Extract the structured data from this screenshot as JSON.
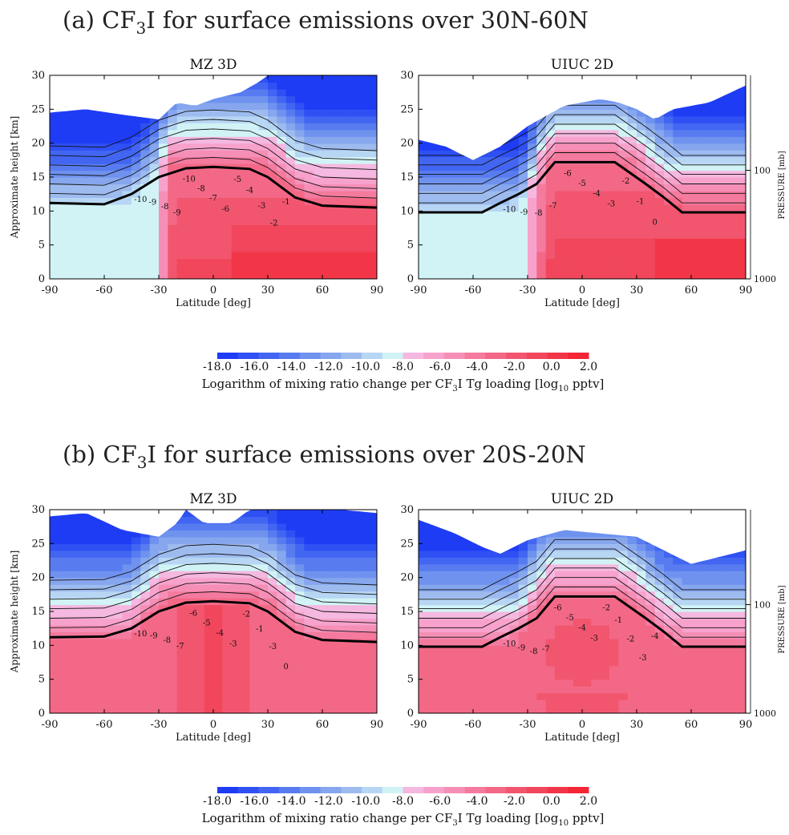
{
  "sections": [
    {
      "title": "(a) CF3I for surface emissions over 30N-60N",
      "title_main": "(a) CF",
      "title_sub": "3",
      "title_rest": "I for surface emissions over 30N-60N"
    },
    {
      "title": "(b) CF3I for surface emissions over 20S-20N",
      "title_main": "(b) CF",
      "title_sub": "3",
      "title_rest": "I for surface emissions over 20S-20N"
    }
  ],
  "colorbar": {
    "ticks": [
      "-18.0",
      "-16.0",
      "-14.0",
      "-12.0",
      "-10.0",
      "-8.0",
      "-6.0",
      "-4.0",
      "-2.0",
      "0.0",
      "2.0"
    ],
    "label_pre": "Logarithm of mixing ratio change per CF",
    "label_sub1": "3",
    "label_mid": "I Tg loading [log",
    "label_sub2": "10",
    "label_post": " pptv]",
    "colors": [
      "#1f3cf5",
      "#2f50f3",
      "#4266f2",
      "#587cf0",
      "#6f92ef",
      "#86a6ee",
      "#9dbbef",
      "#b7d6f4",
      "#d1f3f5",
      "#f5b8e0",
      "#f7a2cc",
      "#f58fb6",
      "#f47a9e",
      "#f36886",
      "#f2566f",
      "#f1465b",
      "#f23648",
      "#f42636"
    ]
  },
  "chart_data": [
    {
      "type": "heatmap",
      "panel": "a-left",
      "title": "MZ 3D",
      "xlabel": "Latitude [deg]",
      "ylabel": "Approximate height [km]",
      "xlim": [
        -90,
        90
      ],
      "ylim": [
        0,
        30
      ],
      "xticks": [
        "-90",
        "-60",
        "-30",
        "0",
        "30",
        "60",
        "90"
      ],
      "yticks": [
        "0",
        "5",
        "10",
        "15",
        "20",
        "25",
        "30"
      ],
      "contour_labels": [
        "-10",
        "-9",
        "-8",
        "-9",
        "-10",
        "-8",
        "-7",
        "-6",
        "-5",
        "-4",
        "-3",
        "-2",
        "-1"
      ],
      "tropopause_km": [
        [
          -90,
          11.2
        ],
        [
          -60,
          11
        ],
        [
          -45,
          12.5
        ],
        [
          -30,
          15
        ],
        [
          -15,
          16.3
        ],
        [
          0,
          16.5
        ],
        [
          20,
          16.2
        ],
        [
          30,
          15
        ],
        [
          45,
          12
        ],
        [
          60,
          10.8
        ],
        [
          90,
          10.5
        ]
      ]
    },
    {
      "type": "heatmap",
      "panel": "a-right",
      "title": "UIUC 2D",
      "xlabel": "Latitude [deg]",
      "ylabel2": "PRESSURE [mb]",
      "xlim": [
        -90,
        90
      ],
      "ylim": [
        0,
        30
      ],
      "xticks": [
        "-90",
        "-60",
        "-30",
        "0",
        "30",
        "60",
        "90"
      ],
      "yticks": [
        "0",
        "5",
        "10",
        "15",
        "20",
        "25",
        "30"
      ],
      "pressure_ticks": [
        "100",
        "1000"
      ],
      "contour_labels": [
        "-10",
        "-9",
        "-8",
        "-7",
        "-6",
        "-5",
        "-4",
        "-3",
        "-2",
        "-1",
        "0"
      ],
      "tropopause_km": [
        [
          -90,
          9.8
        ],
        [
          -55,
          9.8
        ],
        [
          -45,
          11.2
        ],
        [
          -35,
          12.5
        ],
        [
          -25,
          14
        ],
        [
          -15,
          17.2
        ],
        [
          18,
          17.2
        ],
        [
          35,
          14
        ],
        [
          45,
          12
        ],
        [
          55,
          9.8
        ],
        [
          90,
          9.8
        ]
      ]
    },
    {
      "type": "heatmap",
      "panel": "b-left",
      "title": "MZ 3D",
      "xlabel": "Latitude [deg]",
      "ylabel": "Approximate height [km]",
      "xlim": [
        -90,
        90
      ],
      "ylim": [
        0,
        30
      ],
      "xticks": [
        "-90",
        "-60",
        "-30",
        "0",
        "30",
        "60",
        "90"
      ],
      "yticks": [
        "0",
        "5",
        "10",
        "15",
        "20",
        "25",
        "30"
      ],
      "contour_labels": [
        "-10",
        "-9",
        "-8",
        "-7",
        "-6",
        "-5",
        "-4",
        "-3",
        "-2",
        "-1",
        "-3",
        "0"
      ],
      "tropopause_km": [
        [
          -90,
          11.2
        ],
        [
          -60,
          11.3
        ],
        [
          -45,
          12.5
        ],
        [
          -30,
          15
        ],
        [
          -15,
          16.3
        ],
        [
          0,
          16.5
        ],
        [
          20,
          16.2
        ],
        [
          30,
          15
        ],
        [
          45,
          12
        ],
        [
          60,
          10.8
        ],
        [
          90,
          10.5
        ]
      ]
    },
    {
      "type": "heatmap",
      "panel": "b-right",
      "title": "UIUC 2D",
      "xlabel": "Latitude [deg]",
      "ylabel2": "PRESSURE [mb]",
      "xlim": [
        -90,
        90
      ],
      "ylim": [
        0,
        30
      ],
      "xticks": [
        "-90",
        "-60",
        "-30",
        "0",
        "30",
        "60",
        "90"
      ],
      "yticks": [
        "0",
        "5",
        "10",
        "15",
        "20",
        "25",
        "30"
      ],
      "pressure_ticks": [
        "100",
        "1000"
      ],
      "contour_labels": [
        "-10",
        "-9",
        "-8",
        "-7",
        "-6",
        "-5",
        "-4",
        "-3",
        "-2",
        "-1",
        "-2",
        "-3",
        "-4"
      ],
      "tropopause_km": [
        [
          -90,
          9.8
        ],
        [
          -55,
          9.8
        ],
        [
          -45,
          11.2
        ],
        [
          -35,
          12.5
        ],
        [
          -25,
          14
        ],
        [
          -15,
          17.2
        ],
        [
          18,
          17.2
        ],
        [
          35,
          14
        ],
        [
          45,
          12
        ],
        [
          55,
          9.8
        ],
        [
          90,
          9.8
        ]
      ]
    }
  ]
}
